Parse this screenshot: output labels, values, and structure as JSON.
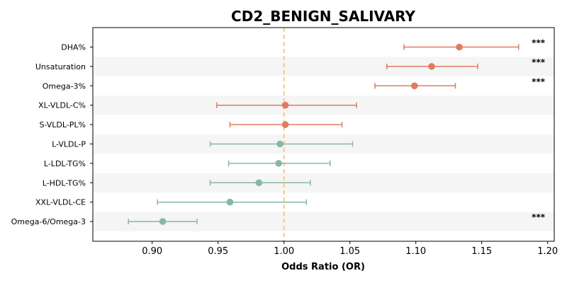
{
  "chart_data": {
    "type": "forest",
    "title": "CD2_BENIGN_SALIVARY",
    "xlabel": "Odds Ratio (OR)",
    "xlim": [
      0.855,
      1.205
    ],
    "xticks": [
      "0.90",
      "0.95",
      "1.00",
      "1.05",
      "1.10",
      "1.15",
      "1.20"
    ],
    "reference_line": 1.0,
    "colors": {
      "positive": "#e07b5f",
      "negative": "#86b9a0",
      "reference": "#f5c98a",
      "stripe": "#f5f5f5",
      "axis": "#000000"
    },
    "rows": [
      {
        "label": "DHA%",
        "or": 1.133,
        "lo": 1.091,
        "hi": 1.178,
        "sig": "***",
        "color": "positive"
      },
      {
        "label": "Unsaturation",
        "or": 1.112,
        "lo": 1.078,
        "hi": 1.147,
        "sig": "***",
        "color": "positive"
      },
      {
        "label": "Omega-3%",
        "or": 1.099,
        "lo": 1.069,
        "hi": 1.13,
        "sig": "***",
        "color": "positive"
      },
      {
        "label": "XL-VLDL-C%",
        "or": 1.001,
        "lo": 0.949,
        "hi": 1.055,
        "sig": "",
        "color": "positive"
      },
      {
        "label": "S-VLDL-PL%",
        "or": 1.001,
        "lo": 0.959,
        "hi": 1.044,
        "sig": "",
        "color": "positive"
      },
      {
        "label": "L-VLDL-P",
        "or": 0.997,
        "lo": 0.944,
        "hi": 1.052,
        "sig": "",
        "color": "negative"
      },
      {
        "label": "L-LDL-TG%",
        "or": 0.996,
        "lo": 0.958,
        "hi": 1.035,
        "sig": "",
        "color": "negative"
      },
      {
        "label": "L-HDL-TG%",
        "or": 0.981,
        "lo": 0.944,
        "hi": 1.02,
        "sig": "",
        "color": "negative"
      },
      {
        "label": "XXL-VLDL-CE",
        "or": 0.959,
        "lo": 0.904,
        "hi": 1.017,
        "sig": "",
        "color": "negative"
      },
      {
        "label": "Omega-6/Omega-3",
        "or": 0.908,
        "lo": 0.882,
        "hi": 0.934,
        "sig": "***",
        "color": "negative"
      }
    ]
  }
}
